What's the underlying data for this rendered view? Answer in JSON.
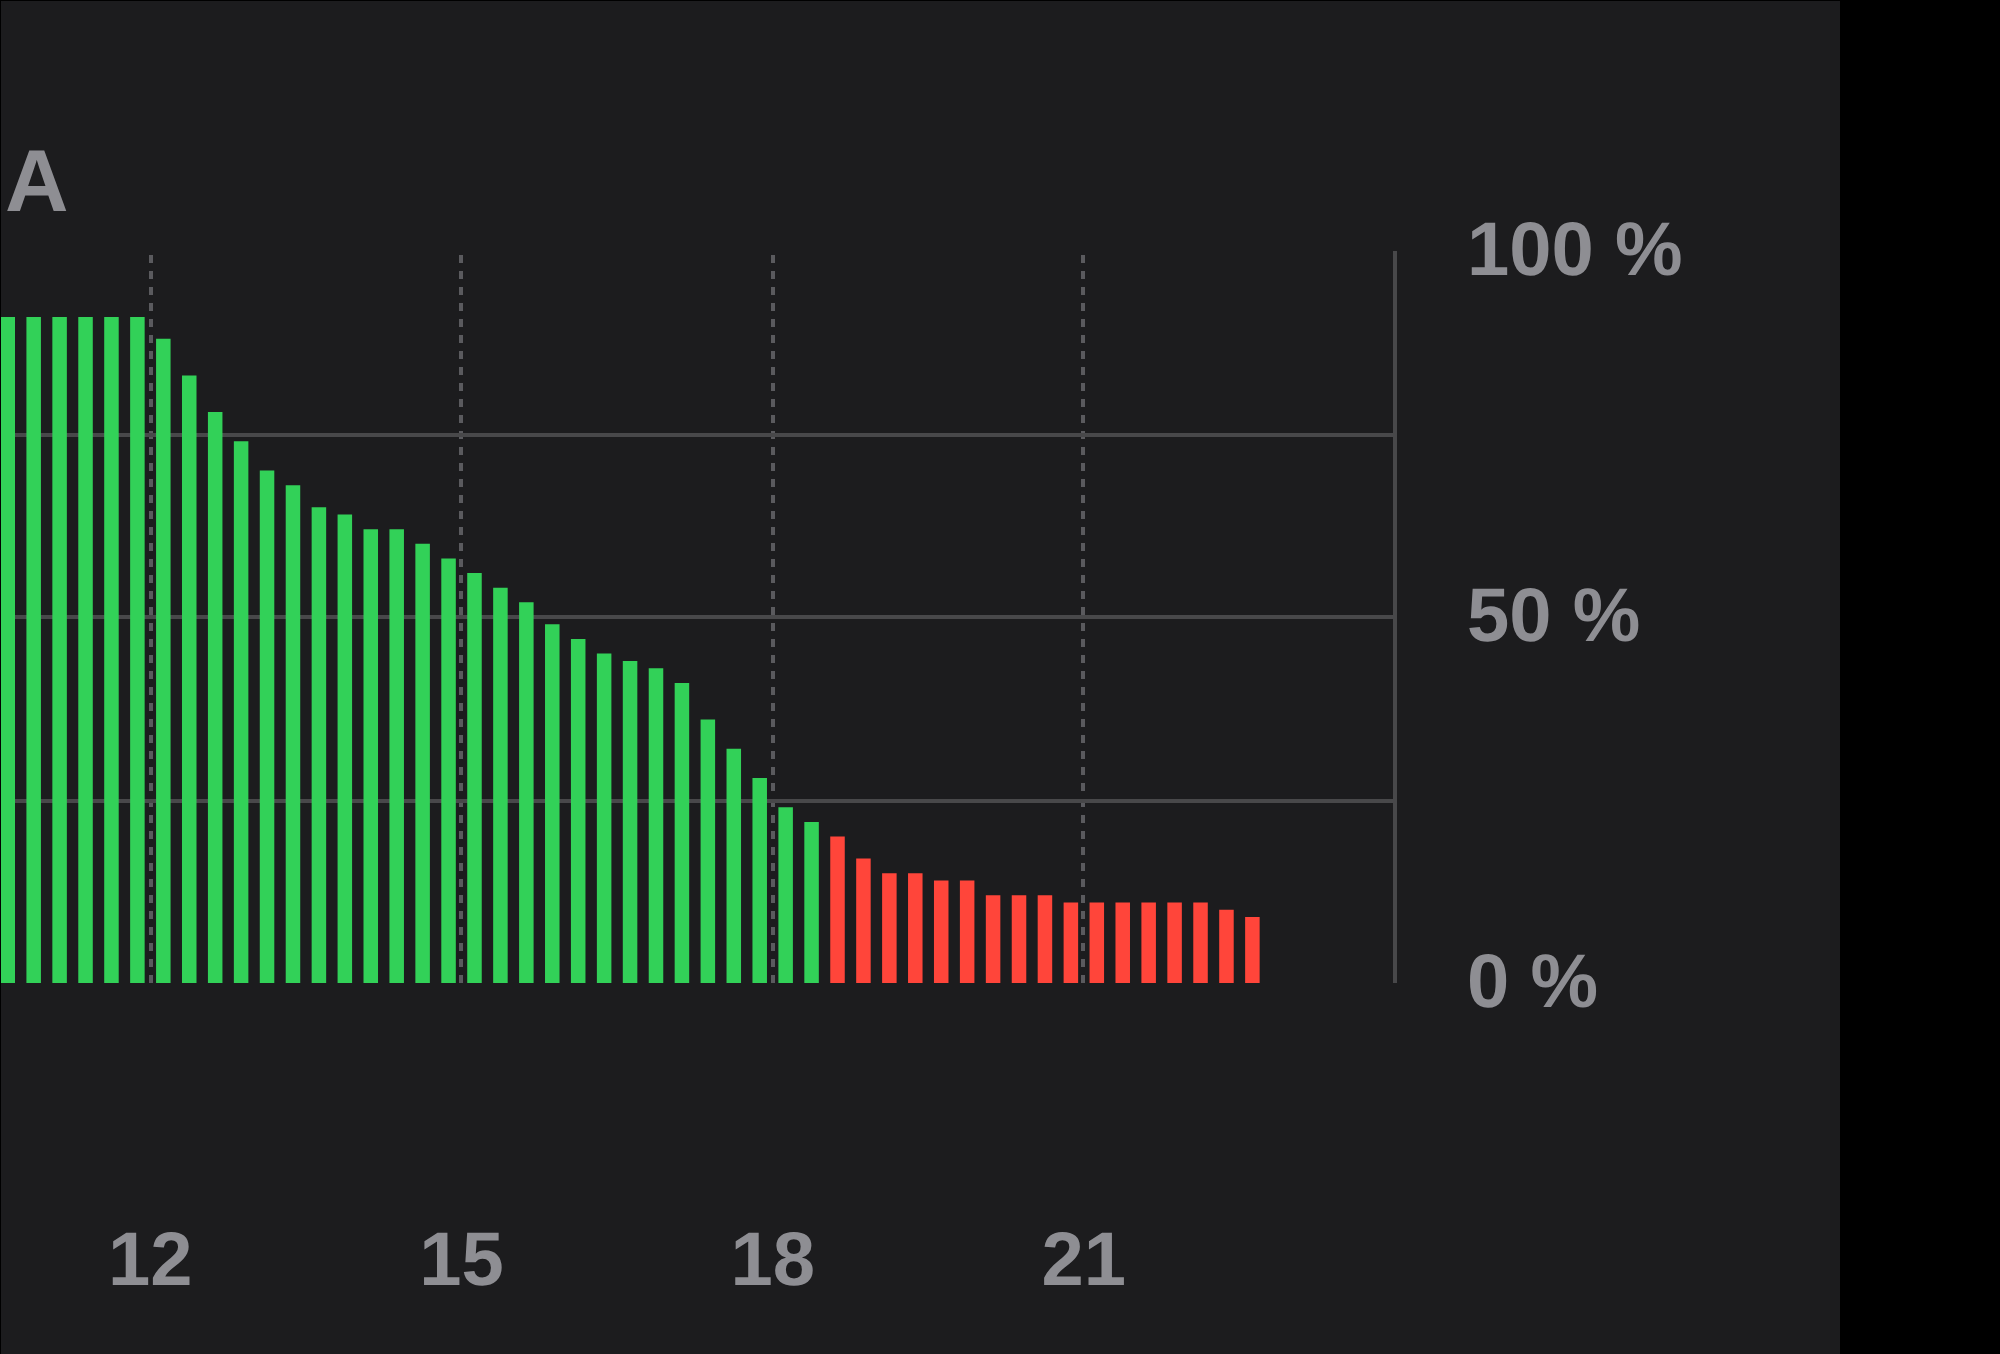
{
  "chart_data": {
    "type": "bar",
    "title": "A",
    "x": [
      10.625,
      10.875,
      11.125,
      11.375,
      11.625,
      11.875,
      12.125,
      12.375,
      12.625,
      12.875,
      13.125,
      13.375,
      13.625,
      13.875,
      14.125,
      14.375,
      14.625,
      14.875,
      15.125,
      15.375,
      15.625,
      15.875,
      16.125,
      16.375,
      16.625,
      16.875,
      17.125,
      17.375,
      17.625,
      17.875,
      18.125,
      18.375,
      18.625,
      18.875,
      19.125,
      19.375,
      19.625,
      19.875,
      20.125,
      20.375,
      20.625,
      20.875,
      21.125,
      21.375,
      21.625,
      21.875,
      22.125,
      22.375,
      22.625
    ],
    "values": [
      91,
      91,
      91,
      91,
      91,
      91,
      88,
      83,
      78,
      74,
      70,
      68,
      65,
      64,
      62,
      62,
      60,
      58,
      56,
      54,
      52,
      49,
      47,
      45,
      44,
      43,
      41,
      36,
      32,
      28,
      24,
      22,
      20,
      17,
      15,
      15,
      14,
      14,
      12,
      12,
      12,
      11,
      11,
      11,
      11,
      11,
      11,
      10,
      9
    ],
    "colors": [
      "#32d158",
      "#32d158",
      "#32d158",
      "#32d158",
      "#32d158",
      "#32d158",
      "#32d158",
      "#32d158",
      "#32d158",
      "#32d158",
      "#32d158",
      "#32d158",
      "#32d158",
      "#32d158",
      "#32d158",
      "#32d158",
      "#32d158",
      "#32d158",
      "#32d158",
      "#32d158",
      "#32d158",
      "#32d158",
      "#32d158",
      "#32d158",
      "#32d158",
      "#32d158",
      "#32d158",
      "#32d158",
      "#32d158",
      "#32d158",
      "#32d158",
      "#32d158",
      "#ff453a",
      "#ff453a",
      "#ff453a",
      "#ff453a",
      "#ff453a",
      "#ff453a",
      "#ff453a",
      "#ff453a",
      "#ff453a",
      "#ff453a",
      "#ff453a",
      "#ff453a",
      "#ff453a",
      "#ff453a",
      "#ff453a",
      "#ff453a",
      "#ff453a"
    ],
    "xlim": [
      10.56,
      24
    ],
    "xticks": [
      12,
      15,
      18,
      21
    ],
    "ylim": [
      0,
      100
    ],
    "yticks": [
      {
        "value": 0,
        "label": "0 %"
      },
      {
        "value": 25,
        "label": null
      },
      {
        "value": 50,
        "label": "50 %"
      },
      {
        "value": 75,
        "label": null
      },
      {
        "value": 100,
        "label": "100 %"
      }
    ],
    "grid": true
  }
}
